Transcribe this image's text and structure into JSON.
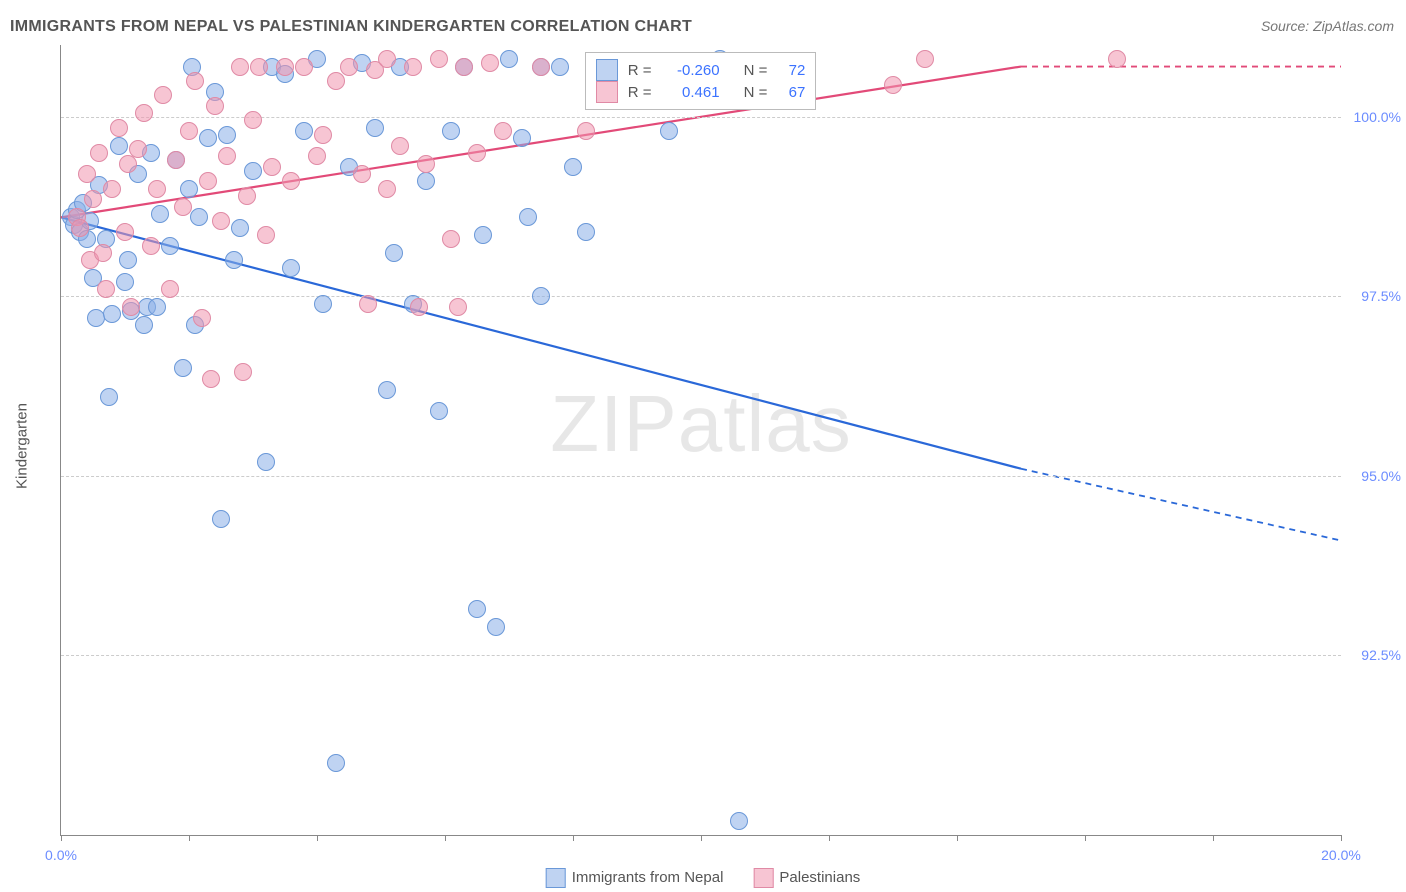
{
  "title": "IMMIGRANTS FROM NEPAL VS PALESTINIAN KINDERGARTEN CORRELATION CHART",
  "source": "Source: ZipAtlas.com",
  "watermark": "ZIPatlas",
  "ylabel": "Kindergarten",
  "chart": {
    "type": "scatter",
    "xlim": [
      0.0,
      20.0
    ],
    "ylim": [
      90.0,
      101.0
    ],
    "yticks": [
      92.5,
      95.0,
      97.5,
      100.0
    ],
    "ytick_labels": [
      "92.5%",
      "95.0%",
      "97.5%",
      "100.0%"
    ],
    "xtick_positions": [
      0,
      2,
      4,
      6,
      8,
      10,
      12,
      14,
      16,
      18,
      20
    ],
    "xtick_labels": {
      "0": "0.0%",
      "20": "20.0%"
    },
    "grid_color": "#cccccc",
    "background_color": "#ffffff",
    "series": [
      {
        "name": "Immigrants from Nepal",
        "fill": "rgba(139,174,232,0.55)",
        "stroke": "#6a98d8",
        "line_color": "#2a68d8",
        "R": "-0.260",
        "N": "72",
        "trend": {
          "x1": 0.0,
          "y1": 98.6,
          "x2_solid": 15.0,
          "y2_solid": 95.1,
          "x2_dash": 20.0,
          "y2_dash": 94.1
        },
        "points": [
          [
            0.15,
            98.6
          ],
          [
            0.2,
            98.5
          ],
          [
            0.25,
            98.7
          ],
          [
            0.3,
            98.4
          ],
          [
            0.35,
            98.8
          ],
          [
            0.4,
            98.3
          ],
          [
            0.45,
            98.55
          ],
          [
            0.5,
            97.75
          ],
          [
            0.55,
            97.2
          ],
          [
            0.6,
            99.05
          ],
          [
            0.7,
            98.3
          ],
          [
            0.75,
            96.1
          ],
          [
            0.8,
            97.25
          ],
          [
            0.9,
            99.6
          ],
          [
            1.0,
            97.7
          ],
          [
            1.05,
            98.0
          ],
          [
            1.1,
            97.3
          ],
          [
            1.2,
            99.2
          ],
          [
            1.3,
            97.1
          ],
          [
            1.35,
            97.35
          ],
          [
            1.4,
            99.5
          ],
          [
            1.5,
            97.35
          ],
          [
            1.55,
            98.65
          ],
          [
            1.7,
            98.2
          ],
          [
            1.8,
            99.4
          ],
          [
            1.9,
            96.5
          ],
          [
            2.0,
            99.0
          ],
          [
            2.05,
            100.7
          ],
          [
            2.1,
            97.1
          ],
          [
            2.15,
            98.6
          ],
          [
            2.3,
            99.7
          ],
          [
            2.4,
            100.35
          ],
          [
            2.5,
            94.4
          ],
          [
            2.6,
            99.75
          ],
          [
            2.7,
            98.0
          ],
          [
            2.8,
            98.45
          ],
          [
            3.0,
            99.25
          ],
          [
            3.2,
            95.2
          ],
          [
            3.3,
            100.7
          ],
          [
            3.5,
            100.6
          ],
          [
            3.6,
            97.9
          ],
          [
            3.8,
            99.8
          ],
          [
            4.0,
            100.8
          ],
          [
            4.1,
            97.4
          ],
          [
            4.3,
            91.0
          ],
          [
            4.5,
            99.3
          ],
          [
            4.7,
            100.75
          ],
          [
            4.9,
            99.85
          ],
          [
            5.1,
            96.2
          ],
          [
            5.2,
            98.1
          ],
          [
            5.3,
            100.7
          ],
          [
            5.5,
            97.4
          ],
          [
            5.7,
            99.1
          ],
          [
            5.9,
            95.9
          ],
          [
            6.1,
            99.8
          ],
          [
            6.3,
            100.7
          ],
          [
            6.5,
            93.15
          ],
          [
            6.6,
            98.35
          ],
          [
            7.0,
            100.8
          ],
          [
            7.2,
            99.7
          ],
          [
            7.3,
            98.6
          ],
          [
            7.5,
            97.5
          ],
          [
            7.8,
            100.7
          ],
          [
            8.0,
            99.3
          ],
          [
            8.2,
            98.4
          ],
          [
            8.4,
            100.65
          ],
          [
            6.8,
            92.9
          ],
          [
            7.5,
            100.7
          ],
          [
            9.0,
            100.7
          ],
          [
            9.5,
            99.8
          ],
          [
            10.3,
            100.8
          ],
          [
            10.6,
            90.2
          ]
        ]
      },
      {
        "name": "Palestinians",
        "fill": "rgba(240,150,175,0.55)",
        "stroke": "#e08aa5",
        "line_color": "#e24a78",
        "R": "0.461",
        "N": "67",
        "trend": {
          "x1": 0.0,
          "y1": 98.6,
          "x2_solid": 15.0,
          "y2_solid": 100.7,
          "x2_dash": 20.0,
          "y2_dash": 100.7
        },
        "points": [
          [
            0.25,
            98.6
          ],
          [
            0.3,
            98.45
          ],
          [
            0.4,
            99.2
          ],
          [
            0.45,
            98.0
          ],
          [
            0.5,
            98.85
          ],
          [
            0.6,
            99.5
          ],
          [
            0.65,
            98.1
          ],
          [
            0.7,
            97.6
          ],
          [
            0.8,
            99.0
          ],
          [
            0.9,
            99.85
          ],
          [
            1.0,
            98.4
          ],
          [
            1.05,
            99.35
          ],
          [
            1.1,
            97.35
          ],
          [
            1.2,
            99.55
          ],
          [
            1.3,
            100.05
          ],
          [
            1.4,
            98.2
          ],
          [
            1.5,
            99.0
          ],
          [
            1.6,
            100.3
          ],
          [
            1.7,
            97.6
          ],
          [
            1.8,
            99.4
          ],
          [
            1.9,
            98.75
          ],
          [
            2.0,
            99.8
          ],
          [
            2.1,
            100.5
          ],
          [
            2.2,
            97.2
          ],
          [
            2.3,
            99.1
          ],
          [
            2.35,
            96.35
          ],
          [
            2.4,
            100.15
          ],
          [
            2.5,
            98.55
          ],
          [
            2.6,
            99.45
          ],
          [
            2.8,
            100.7
          ],
          [
            2.85,
            96.45
          ],
          [
            2.9,
            98.9
          ],
          [
            3.0,
            99.95
          ],
          [
            3.1,
            100.7
          ],
          [
            3.2,
            98.35
          ],
          [
            3.3,
            99.3
          ],
          [
            3.5,
            100.7
          ],
          [
            3.6,
            99.1
          ],
          [
            3.8,
            100.7
          ],
          [
            4.0,
            99.45
          ],
          [
            4.1,
            99.75
          ],
          [
            4.3,
            100.5
          ],
          [
            4.5,
            100.7
          ],
          [
            4.7,
            99.2
          ],
          [
            4.9,
            100.65
          ],
          [
            5.1,
            100.8
          ],
          [
            5.3,
            99.6
          ],
          [
            5.5,
            100.7
          ],
          [
            5.7,
            99.35
          ],
          [
            5.9,
            100.8
          ],
          [
            6.1,
            98.3
          ],
          [
            6.2,
            97.35
          ],
          [
            6.3,
            100.7
          ],
          [
            6.5,
            99.5
          ],
          [
            6.7,
            100.75
          ],
          [
            6.9,
            99.8
          ],
          [
            4.8,
            97.4
          ],
          [
            5.1,
            99.0
          ],
          [
            5.6,
            97.35
          ],
          [
            7.5,
            100.7
          ],
          [
            8.2,
            99.8
          ],
          [
            9.0,
            100.7
          ],
          [
            10.0,
            100.7
          ],
          [
            11.5,
            100.7
          ],
          [
            13.0,
            100.45
          ],
          [
            13.5,
            100.8
          ],
          [
            16.5,
            100.8
          ]
        ]
      }
    ]
  },
  "legend_bottom": [
    {
      "label": "Immigrants from Nepal",
      "fill": "rgba(139,174,232,0.55)",
      "stroke": "#6a98d8"
    },
    {
      "label": "Palestinians",
      "fill": "rgba(240,150,175,0.55)",
      "stroke": "#e08aa5"
    }
  ],
  "legend_top": {
    "prefix_R": "R =",
    "prefix_N": "N ="
  }
}
